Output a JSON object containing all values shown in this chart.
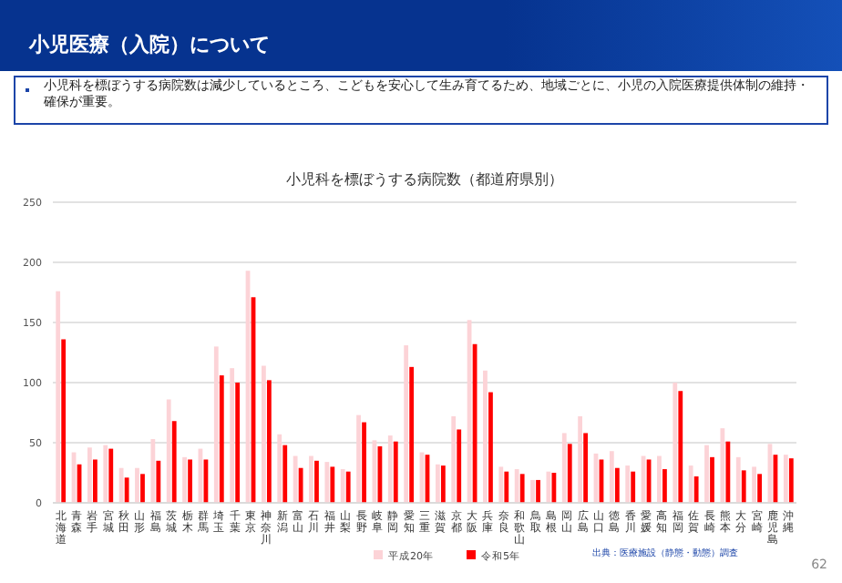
{
  "chart_data": {
    "type": "bar",
    "title": "小児科を標ぼうする病院数（都道府県別）",
    "annotations": [
      "小児医療（入院）について",
      "小児科を標ぼうする病院数は減少しているところ、こどもを安心して生み育てるため、地域ごとに、小児の入院医療提供体制の維持・確保が重要。",
      "出典：医療施設（静態・動態）調査",
      "62"
    ],
    "categories": [
      "北海道",
      "青森",
      "岩手",
      "宮城",
      "秋田",
      "山形",
      "福島",
      "茨城",
      "栃木",
      "群馬",
      "埼玉",
      "千葉",
      "東京",
      "神奈川",
      "新潟",
      "富山",
      "石川",
      "福井",
      "山梨",
      "長野",
      "岐阜",
      "静岡",
      "愛知",
      "三重",
      "滋賀",
      "京都",
      "大阪",
      "兵庫",
      "奈良",
      "和歌山",
      "鳥取",
      "島根",
      "岡山",
      "広島",
      "山口",
      "徳島",
      "香川",
      "愛媛",
      "高知",
      "福岡",
      "佐賀",
      "長崎",
      "熊本",
      "大分",
      "宮崎",
      "鹿児島",
      "沖縄"
    ],
    "series": [
      {
        "name": "平成20年",
        "color": "#fcd3d7",
        "values": [
          176,
          42,
          46,
          48,
          29,
          29,
          53,
          86,
          38,
          45,
          130,
          112,
          193,
          114,
          57,
          39,
          39,
          34,
          28,
          73,
          52,
          56,
          131,
          42,
          32,
          72,
          152,
          110,
          30,
          28,
          19,
          26,
          58,
          72,
          41,
          43,
          31,
          39,
          39,
          100,
          31,
          48,
          62,
          38,
          30,
          49,
          40
        ]
      },
      {
        "name": "令和5年",
        "color": "#ff0000",
        "values": [
          136,
          32,
          36,
          45,
          21,
          24,
          35,
          68,
          36,
          36,
          106,
          100,
          171,
          102,
          48,
          29,
          35,
          30,
          26,
          67,
          47,
          51,
          113,
          40,
          31,
          61,
          132,
          92,
          26,
          24,
          19,
          25,
          49,
          58,
          36,
          29,
          26,
          36,
          28,
          93,
          22,
          38,
          51,
          27,
          24,
          40,
          37
        ]
      }
    ],
    "ylim": [
      0,
      250
    ],
    "yticks": [
      0,
      50,
      100,
      150,
      200,
      250
    ],
    "grid": "y",
    "legend": "bottom"
  }
}
